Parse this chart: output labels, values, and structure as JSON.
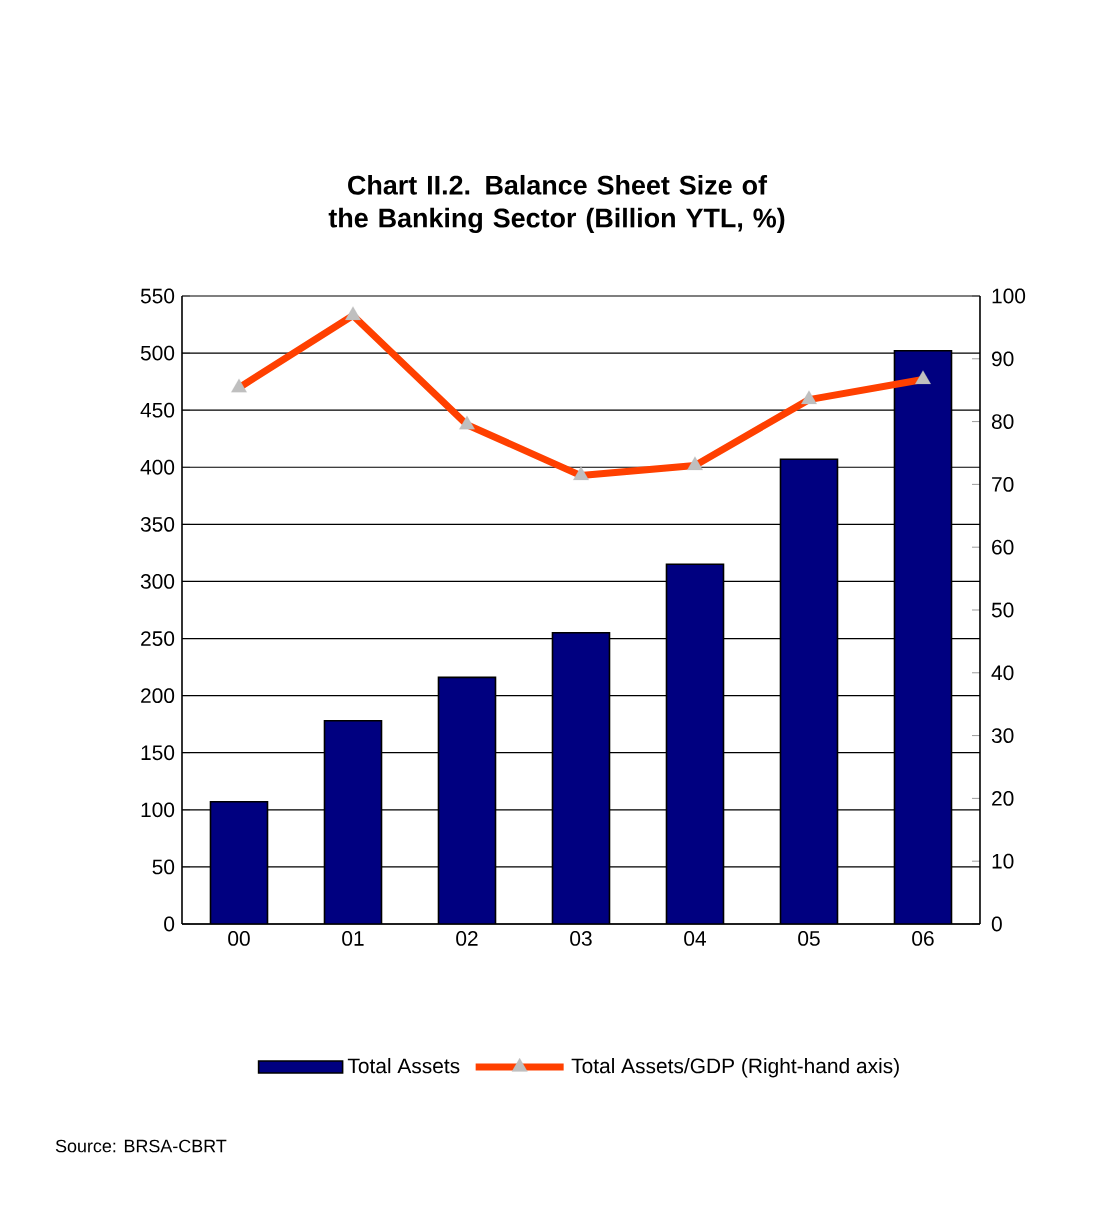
{
  "chart_data": {
    "type": "bar",
    "title": "Chart II.2. Balance Sheet Size of the Banking Sector (Billion YTL, %)",
    "categories": [
      "00",
      "01",
      "02",
      "03",
      "04",
      "05",
      "06"
    ],
    "series": [
      {
        "name": "Total Assets",
        "color": "#000080",
        "values": [
          107,
          178,
          216,
          255,
          315,
          407,
          502
        ]
      },
      {
        "name": "Total Assets/GDP (Right-hand axis)",
        "type": "line",
        "axis": "y2",
        "color": "#ff4000",
        "marker": "triangle",
        "values": [
          85.4,
          96.9,
          79.5,
          71.4,
          73.0,
          83.5,
          86.7
        ]
      }
    ],
    "ylim": [
      0,
      550
    ],
    "yticks": [
      0,
      50,
      100,
      150,
      200,
      250,
      300,
      350,
      400,
      450,
      500,
      550
    ],
    "y2lim": [
      0,
      100
    ],
    "y2ticks": [
      0,
      10,
      20,
      30,
      40,
      50,
      60,
      70,
      80,
      90,
      100
    ],
    "grid": "y",
    "legend": "bottom",
    "annotations": [
      "Source: BRSA-CBRT"
    ]
  }
}
